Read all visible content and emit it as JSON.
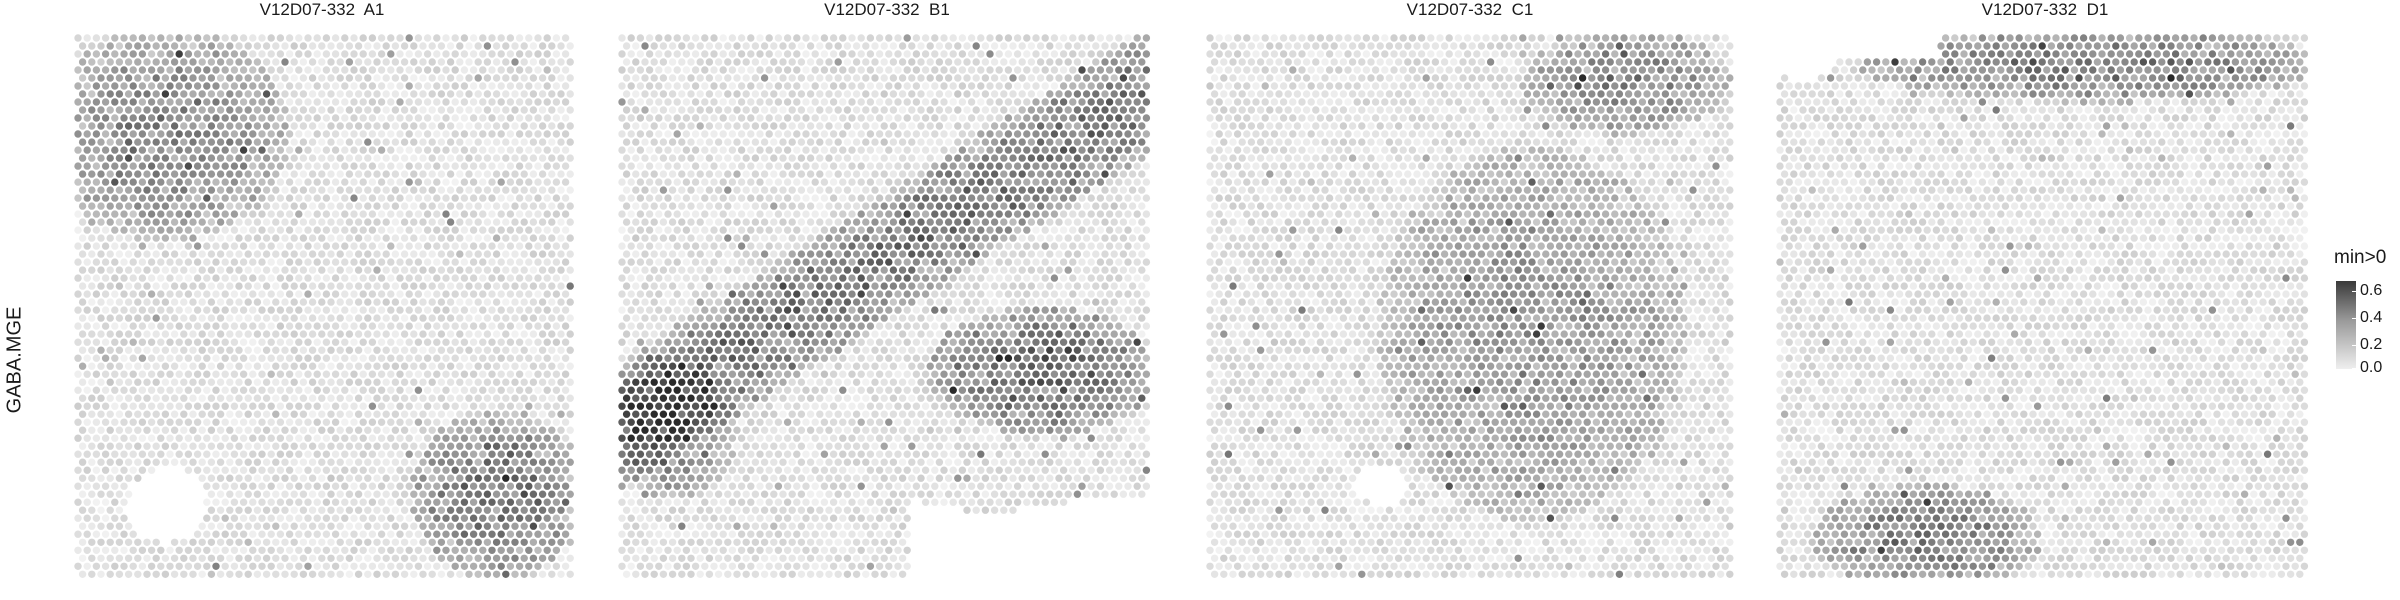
{
  "chart_data": {
    "type": "heatmap",
    "subtype": "spatial spot map",
    "row_label": "GABA.MGE",
    "panels": [
      {
        "title": "V12D07-332  A1",
        "hotspots": [
          {
            "region": "upper-left",
            "level": 0.3
          },
          {
            "region": "lower-right",
            "level": 0.35
          }
        ],
        "empty_regions": [
          "lower-left"
        ]
      },
      {
        "title": "V12D07-332  B1",
        "hotspots": [
          {
            "region": "diagonal band from left-center to upper-right",
            "level": 0.35
          },
          {
            "region": "right-center band",
            "level": 0.4
          },
          {
            "region": "left edge",
            "level": 0.3
          }
        ],
        "empty_regions": [
          "bottom-right"
        ]
      },
      {
        "title": "V12D07-332  C1",
        "hotspots": [
          {
            "region": "center-right",
            "level": 0.25
          },
          {
            "region": "top-right",
            "level": 0.3
          }
        ],
        "empty_regions": [
          "lower-center"
        ]
      },
      {
        "title": "V12D07-332  D1",
        "hotspots": [
          {
            "region": "top band",
            "level": 0.35
          },
          {
            "region": "bottom-left",
            "level": 0.35
          }
        ],
        "empty_regions": [
          "top-left corner"
        ]
      }
    ],
    "legend": {
      "title": "min>0",
      "ticks": [
        "0.6",
        "0.4",
        "0.2",
        "0.0"
      ],
      "range": [
        0.0,
        0.65
      ],
      "colors": {
        "high": "#3a3a3a",
        "mid": "#9a9a9a",
        "low": "#efefef"
      }
    },
    "grid": false
  }
}
